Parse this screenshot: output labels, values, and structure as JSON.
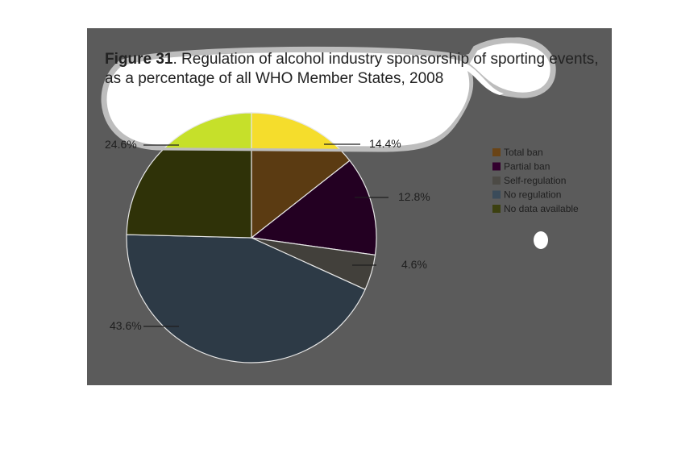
{
  "figure": {
    "label": "Figure 31",
    "title_rest": ". Regulation of alcohol industry sponsorship of sporting events,",
    "title_line2": "as a percentage of all WHO Member States, 2008"
  },
  "chart_data": {
    "type": "pie",
    "title": "Figure 31. Regulation of alcohol industry sponsorship of sporting events, as a percentage of all WHO Member States, 2008",
    "categories": [
      "Total ban",
      "Partial ban",
      "Self-regulation",
      "No regulation",
      "No data available"
    ],
    "values": [
      14.4,
      12.8,
      4.6,
      43.6,
      24.6
    ],
    "labels": [
      "14.4%",
      "12.8%",
      "4.6%",
      "43.6%",
      "24.6%"
    ],
    "colors": [
      "#5b3b12",
      "#230022",
      "#42403b",
      "#2d3a46",
      "#2f3208"
    ],
    "highlight_colors": [
      "#f5dd2c",
      "#f5dd2c",
      "#f5dd2c",
      "#f5dd2c",
      "#c6e02a"
    ],
    "legend_position": "right"
  },
  "legend": {
    "items": [
      {
        "label": "Total ban",
        "color": "#6a4416"
      },
      {
        "label": "Partial ban",
        "color": "#33002e"
      },
      {
        "label": "Self-regulation",
        "color": "#4c4a45"
      },
      {
        "label": "No regulation",
        "color": "#3a4b5a"
      },
      {
        "label": "No data available",
        "color": "#3c4010"
      }
    ]
  }
}
